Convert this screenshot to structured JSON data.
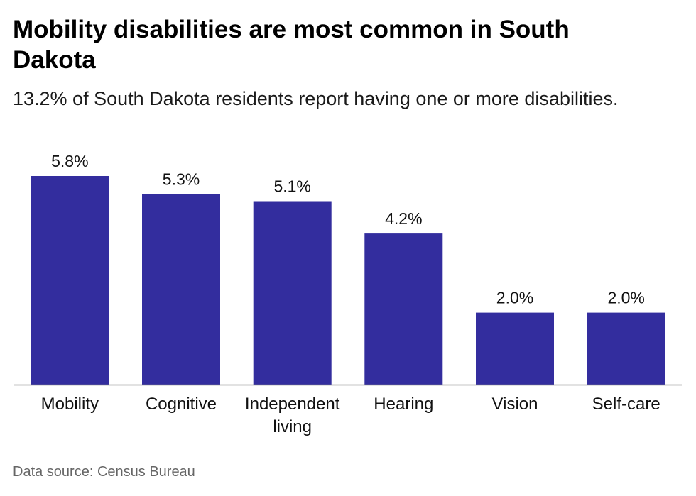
{
  "title": "Mobility disabilities are most common in South Dakota",
  "subtitle": "13.2% of South Dakota residents report having one or more disabilities.",
  "source": "Data source: Census Bureau",
  "colors": {
    "bar": "#332d9e",
    "axis": "#8a8a8a",
    "text": "#111111"
  },
  "chart_data": {
    "type": "bar",
    "categories": [
      "Mobility",
      "Cognitive",
      "Independent living",
      "Hearing",
      "Vision",
      "Self-care"
    ],
    "category_lines": [
      [
        "Mobility"
      ],
      [
        "Cognitive"
      ],
      [
        "Independent",
        "living"
      ],
      [
        "Hearing"
      ],
      [
        "Vision"
      ],
      [
        "Self-care"
      ]
    ],
    "values": [
      5.8,
      5.3,
      5.1,
      4.2,
      2.0,
      2.0
    ],
    "value_labels": [
      "5.8%",
      "5.3%",
      "5.1%",
      "4.2%",
      "2.0%",
      "2.0%"
    ],
    "ylim": [
      0,
      5.8
    ],
    "grid": false,
    "legend": "none",
    "xlabel": "",
    "ylabel": ""
  }
}
